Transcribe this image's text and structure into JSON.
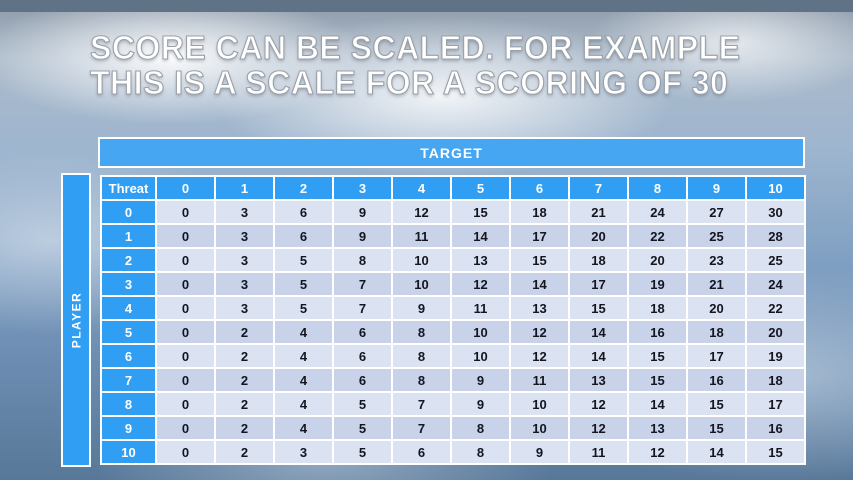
{
  "slide": {
    "title_line1": "SCORE CAN BE SCALED. FOR EXAMPLE",
    "title_line2": "THIS IS A SCALE FOR A SCORING OF 30"
  },
  "table": {
    "target_label": "TARGET",
    "player_label": "PLAYER",
    "corner_label": "Threat",
    "col_headers": [
      "0",
      "1",
      "2",
      "3",
      "4",
      "5",
      "6",
      "7",
      "8",
      "9",
      "10"
    ],
    "rows": [
      {
        "header": "0",
        "values": [
          "0",
          "3",
          "6",
          "9",
          "12",
          "15",
          "18",
          "21",
          "24",
          "27",
          "30"
        ]
      },
      {
        "header": "1",
        "values": [
          "0",
          "3",
          "6",
          "9",
          "11",
          "14",
          "17",
          "20",
          "22",
          "25",
          "28"
        ]
      },
      {
        "header": "2",
        "values": [
          "0",
          "3",
          "5",
          "8",
          "10",
          "13",
          "15",
          "18",
          "20",
          "23",
          "25"
        ]
      },
      {
        "header": "3",
        "values": [
          "0",
          "3",
          "5",
          "7",
          "10",
          "12",
          "14",
          "17",
          "19",
          "21",
          "24"
        ]
      },
      {
        "header": "4",
        "values": [
          "0",
          "3",
          "5",
          "7",
          "9",
          "11",
          "13",
          "15",
          "18",
          "20",
          "22"
        ]
      },
      {
        "header": "5",
        "values": [
          "0",
          "2",
          "4",
          "6",
          "8",
          "10",
          "12",
          "14",
          "16",
          "18",
          "20"
        ]
      },
      {
        "header": "6",
        "values": [
          "0",
          "2",
          "4",
          "6",
          "8",
          "10",
          "12",
          "14",
          "15",
          "17",
          "19"
        ]
      },
      {
        "header": "7",
        "values": [
          "0",
          "2",
          "4",
          "6",
          "8",
          "9",
          "11",
          "13",
          "15",
          "16",
          "18"
        ]
      },
      {
        "header": "8",
        "values": [
          "0",
          "2",
          "4",
          "5",
          "7",
          "9",
          "10",
          "12",
          "14",
          "15",
          "17"
        ]
      },
      {
        "header": "9",
        "values": [
          "0",
          "2",
          "4",
          "5",
          "7",
          "8",
          "10",
          "12",
          "13",
          "15",
          "16"
        ]
      },
      {
        "header": "10",
        "values": [
          "0",
          "2",
          "3",
          "5",
          "6",
          "8",
          "9",
          "11",
          "12",
          "14",
          "15"
        ]
      }
    ]
  },
  "colors": {
    "header_blue": "#2f9ef3",
    "target_bar_blue": "#46a6f2",
    "row_light": "#dbe3f2",
    "row_dark": "#c8d2e9",
    "cell_text": "#15151f",
    "title_text": "#ffffff",
    "top_strip": "#5f7286"
  }
}
